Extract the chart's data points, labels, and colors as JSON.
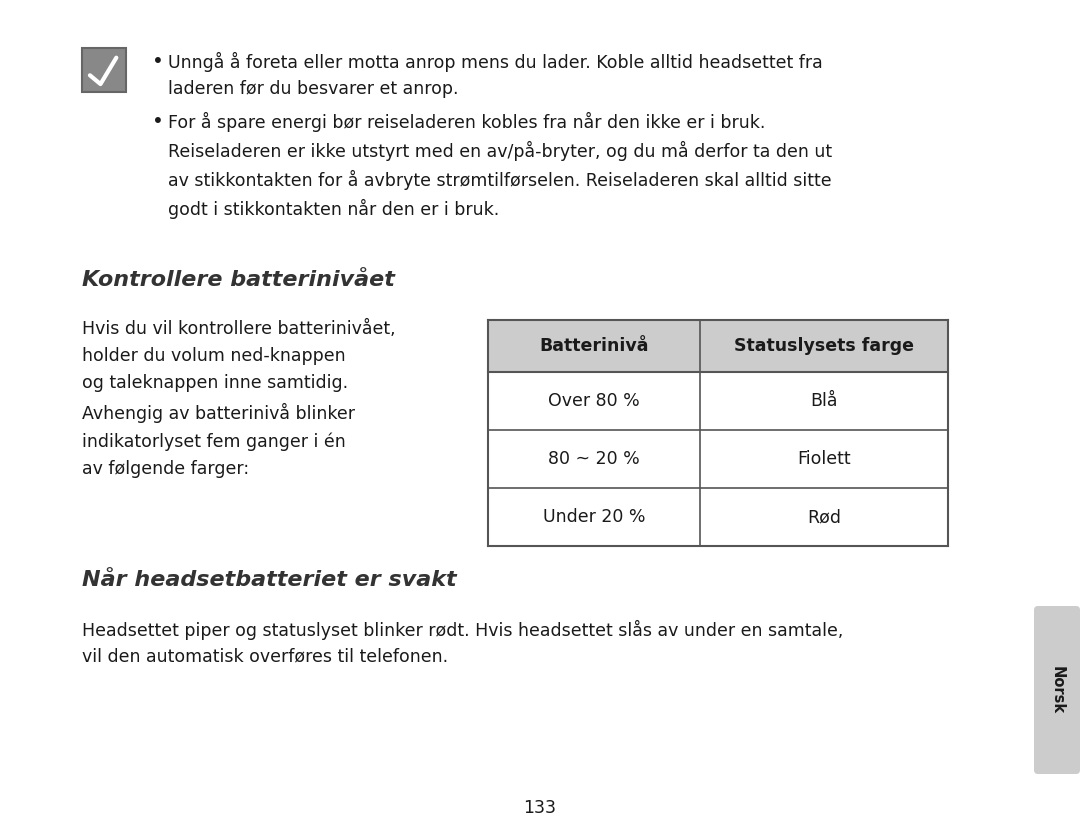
{
  "bg_color": "#ffffff",
  "page_number": "133",
  "bullet1_text": "Unngå å foreta eller motta anrop mens du lader. Koble alltid headsettet fra\nladeren før du besvarer et anrop.",
  "bullet2_text": "For å spare energi bør reiseladeren kobles fra når den ikke er i bruk.\nReiseladeren er ikke utstyrt med en av/på-bryter, og du må derfor ta den ut\nav stikkontakten for å avbryte strømtilførselen. Reiseladeren skal alltid sitte\ngodt i stikkontakten når den er i bruk.",
  "section1_title": "Kontrollere batterinivået",
  "section1_body": "Hvis du vil kontrollere batterinivået,\nholder du volum ned-knappen\nog taleknappen inne samtidig.\nAvhengig av batterinivå blinker\nindikatorlyset fem ganger i én\nav følgende farger:",
  "table_header": [
    "Batterinivå",
    "Statuslysets farge"
  ],
  "table_rows": [
    [
      "Over 80 %",
      "Blå"
    ],
    [
      "80 ~ 20 %",
      "Fiolett"
    ],
    [
      "Under 20 %",
      "Rød"
    ]
  ],
  "section2_title": "Når headsetbatteriet er svakt",
  "section2_body": "Headsettet piper og statuslyset blinker rødt. Hvis headsettet slås av under en samtale,\nvil den automatisk overføres til telefonen.",
  "sidebar_text": "Norsk",
  "sidebar_bg": "#cccccc",
  "sidebar_fg": "#1a1a1a",
  "header_bg": "#cccccc",
  "header_fg": "#1a1a1a",
  "table_border_color": "#555555",
  "row_line_color": "#555555",
  "body_font_size": 12.5,
  "title_font_size": 16,
  "section_title_color": "#333333",
  "text_color": "#1a1a1a",
  "checkbox_bg": "#888888",
  "checkbox_border": "#666666"
}
